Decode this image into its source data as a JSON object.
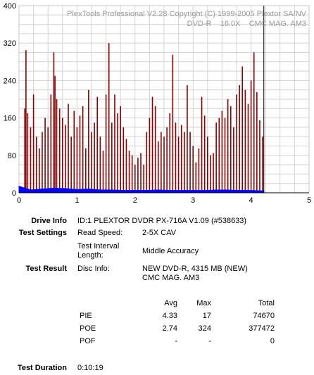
{
  "chart_data": {
    "type": "bar",
    "header_line1": "PlexTools Professional V2.28 Copyright (C) 1999-2005 Plextor SA/NV",
    "header_line2": "DVD-R    16.0X    CMC MAG. AM3",
    "xlim": [
      0,
      5
    ],
    "ylim": [
      0,
      400
    ],
    "x_ticks": [
      "0",
      "1",
      "2",
      "3",
      "4",
      "5"
    ],
    "y_ticks": [
      "0",
      "80",
      "160",
      "240",
      "320",
      "400"
    ],
    "end_marker_x": 4.22,
    "grid": true,
    "series": [
      {
        "color": "#8b0000",
        "x": [
          0.1,
          0.12,
          0.15,
          0.2,
          0.25,
          0.3,
          0.35,
          0.4,
          0.45,
          0.5,
          0.55,
          0.6,
          0.62,
          0.65,
          0.7,
          0.75,
          0.8,
          0.85,
          0.9,
          0.95,
          1.0,
          1.05,
          1.1,
          1.15,
          1.2,
          1.25,
          1.3,
          1.35,
          1.4,
          1.45,
          1.5,
          1.55,
          1.6,
          1.65,
          1.7,
          1.75,
          1.8,
          1.85,
          1.9,
          1.95,
          2.0,
          2.05,
          2.1,
          2.15,
          2.2,
          2.25,
          2.3,
          2.35,
          2.4,
          2.45,
          2.5,
          2.55,
          2.6,
          2.65,
          2.7,
          2.75,
          2.8,
          2.85,
          2.9,
          2.95,
          3.0,
          3.05,
          3.1,
          3.15,
          3.2,
          3.25,
          3.3,
          3.35,
          3.4,
          3.45,
          3.5,
          3.55,
          3.6,
          3.65,
          3.7,
          3.75,
          3.8,
          3.85,
          3.9,
          3.95,
          4.0,
          4.05,
          4.1,
          4.15,
          4.2
        ],
        "values": [
          180,
          305,
          170,
          140,
          210,
          120,
          95,
          130,
          160,
          140,
          210,
          300,
          250,
          200,
          180,
          160,
          145,
          190,
          120,
          175,
          140,
          165,
          185,
          95,
          220,
          130,
          150,
          205,
          120,
          90,
          210,
          320,
          150,
          210,
          170,
          185,
          140,
          115,
          90,
          80,
          60,
          75,
          85,
          60,
          130,
          160,
          205,
          185,
          110,
          130,
          120,
          140,
          170,
          295,
          150,
          120,
          145,
          130,
          230,
          130,
          100,
          65,
          95,
          205,
          165,
          120,
          80,
          85,
          150,
          160,
          175,
          160,
          200,
          185,
          140,
          210,
          230,
          270,
          220,
          190,
          240,
          300,
          215,
          155,
          120
        ]
      },
      {
        "color": "#0000ff",
        "x": [
          0.0,
          0.2,
          0.4,
          0.6,
          0.8,
          1.0,
          1.2,
          1.4,
          1.6,
          1.8,
          2.0,
          2.2,
          2.4,
          2.6,
          2.8,
          3.0,
          3.2,
          3.4,
          3.6,
          3.8,
          4.0,
          4.22
        ],
        "values": [
          14,
          6,
          8,
          10,
          9,
          7,
          8,
          6,
          6,
          5,
          5,
          5,
          6,
          5,
          5,
          5,
          5,
          6,
          6,
          5,
          5,
          4
        ]
      }
    ]
  },
  "info": {
    "drive_info_label": "Drive Info",
    "drive_info_value": "ID:1 PLEXTOR DVDR PX-716A V1.09 (#538633)",
    "test_settings_label": "Test Settings",
    "read_speed_label": "Read Speed:",
    "read_speed_value": "2-5X CAV",
    "test_interval_label_1": "Test Interval",
    "test_interval_label_2": "Length:",
    "test_interval_value": "Middle Accuracy",
    "test_result_label": "Test Result",
    "disc_info_label": "Disc Info:",
    "disc_info_value_1": "NEW DVD-R, 4315 MB (NEW)",
    "disc_info_value_2": "CMC MAG. AM3",
    "test_duration_label": "Test Duration",
    "test_duration_value": "0:10:19"
  },
  "stats": {
    "headers": {
      "avg": "Avg",
      "max": "Max",
      "total": "Total"
    },
    "rows": [
      {
        "name": "PIE",
        "avg": "4.33",
        "max": "17",
        "total": "74670"
      },
      {
        "name": "POE",
        "avg": "2.74",
        "max": "324",
        "total": "377472"
      },
      {
        "name": "POF",
        "avg": "-",
        "max": "-",
        "total": "0"
      }
    ]
  }
}
